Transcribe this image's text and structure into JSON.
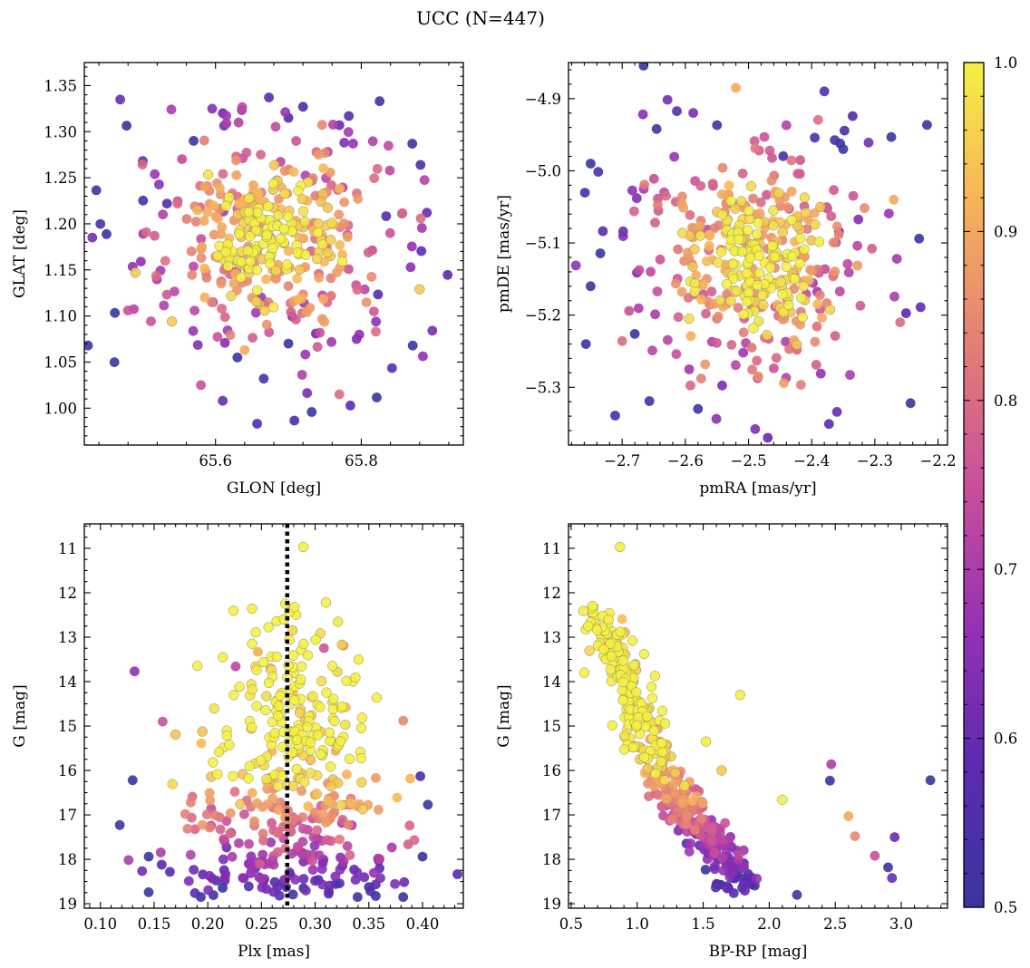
{
  "figure": {
    "title": "UCC (N=447)",
    "colorbar": {
      "label": "",
      "range": [
        0.5,
        1.0
      ],
      "ticks": [
        0.5,
        0.6,
        0.7,
        0.8,
        0.9,
        1.0
      ],
      "tick_labels": [
        "0.5",
        "0.6",
        "0.7",
        "0.8",
        "0.9",
        "1.0"
      ],
      "colormap": "plasma-truncated",
      "stops": [
        "#3a35a0",
        "#5b2ab0",
        "#9531b4",
        "#c94f9a",
        "#e37f76",
        "#f6b25a",
        "#f5f044"
      ]
    }
  },
  "chart_data": [
    {
      "type": "scatter",
      "name": "glon-glat",
      "xlabel": "GLON [deg]",
      "ylabel": "GLAT [deg]",
      "xlim": [
        65.42,
        65.94
      ],
      "ylim": [
        0.96,
        1.375
      ],
      "xticks": [
        65.6,
        65.8
      ],
      "xtick_labels": [
        "65.6",
        "65.8"
      ],
      "yticks": [
        1.0,
        1.05,
        1.1,
        1.15,
        1.2,
        1.25,
        1.3,
        1.35
      ],
      "ytick_labels": [
        "1.00",
        "1.05",
        "1.10",
        "1.15",
        "1.20",
        "1.25",
        "1.30",
        "1.35"
      ],
      "yinvert": false,
      "n_points": 447,
      "highlight_points": [
        [
          65.61,
          1.32,
          0.6
        ],
        [
          65.72,
          1.327,
          0.55
        ],
        [
          65.7,
          1.315,
          0.55
        ],
        [
          65.77,
          1.307,
          0.6
        ],
        [
          65.87,
          1.287,
          0.5
        ],
        [
          65.57,
          1.29,
          0.5
        ],
        [
          65.49,
          1.147,
          0.95
        ],
        [
          65.48,
          1.106,
          0.75
        ],
        [
          65.54,
          1.094,
          0.95
        ],
        [
          65.61,
          1.008,
          0.6
        ],
        [
          65.77,
          1.015,
          0.8
        ],
        [
          65.58,
          1.025,
          0.75
        ],
        [
          65.88,
          1.129,
          0.95
        ],
        [
          65.89,
          1.212,
          0.6
        ],
        [
          65.82,
          1.083,
          0.8
        ],
        [
          65.7,
          1.07,
          0.5
        ],
        [
          65.63,
          1.055,
          0.5
        ],
        [
          65.64,
          1.063,
          0.9
        ]
      ],
      "cluster": {
        "center": [
          65.68,
          1.185
        ],
        "spread": [
          0.065,
          0.05
        ]
      }
    },
    {
      "type": "scatter",
      "name": "pmra-pmde",
      "xlabel": "pmRA [mas/yr]",
      "ylabel": "pmDE [mas/yr]",
      "xlim": [
        -2.785,
        -2.185
      ],
      "ylim": [
        -5.38,
        -4.85
      ],
      "xticks": [
        -2.7,
        -2.6,
        -2.5,
        -2.4,
        -2.3,
        -2.2
      ],
      "xtick_labels": [
        "−2.7",
        "−2.6",
        "−2.5",
        "−2.4",
        "−2.3",
        "−2.2"
      ],
      "yticks": [
        -5.3,
        -5.2,
        -5.1,
        -5.0,
        -4.9
      ],
      "ytick_labels": [
        "−5.3",
        "−5.2",
        "−5.1",
        "−5.0",
        "−4.9"
      ],
      "yinvert": false,
      "n_points": 447,
      "highlight_points": [
        [
          -2.38,
          -4.89,
          0.55
        ],
        [
          -2.52,
          -4.885,
          0.9
        ],
        [
          -2.75,
          -4.99,
          0.5
        ],
        [
          -2.75,
          -5.16,
          0.5
        ],
        [
          -2.68,
          -5.226,
          0.5
        ],
        [
          -2.7,
          -5.236,
          0.8
        ],
        [
          -2.58,
          -5.33,
          0.5
        ],
        [
          -2.36,
          -5.334,
          0.6
        ],
        [
          -2.23,
          -5.094,
          0.5
        ],
        [
          -2.26,
          -5.21,
          0.8
        ],
        [
          -2.35,
          -4.97,
          0.5
        ],
        [
          -2.27,
          -5.04,
          0.9
        ]
      ],
      "cluster": {
        "center": [
          -2.49,
          -5.125
        ],
        "spread": [
          0.075,
          0.07
        ]
      }
    },
    {
      "type": "scatter",
      "name": "plx-g",
      "xlabel": "Plx [mas]",
      "ylabel": "G [mag]",
      "xlim": [
        0.085,
        0.438
      ],
      "ylim": [
        10.45,
        19.1
      ],
      "xticks": [
        0.1,
        0.15,
        0.2,
        0.25,
        0.3,
        0.35,
        0.4
      ],
      "xtick_labels": [
        "0.10",
        "0.15",
        "0.20",
        "0.25",
        "0.30",
        "0.35",
        "0.40"
      ],
      "yticks": [
        11,
        12,
        13,
        14,
        15,
        16,
        17,
        18,
        19
      ],
      "ytick_labels": [
        "11",
        "12",
        "13",
        "14",
        "15",
        "16",
        "17",
        "18",
        "19"
      ],
      "yinvert": true,
      "vline": {
        "x": 0.274,
        "style": "dotted"
      },
      "n_points": 447,
      "highlight_points": [
        [
          0.289,
          10.97,
          1.0
        ],
        [
          0.31,
          12.22,
          1.0
        ],
        [
          0.158,
          14.9,
          0.75
        ],
        [
          0.382,
          14.88,
          0.85
        ],
        [
          0.118,
          17.23,
          0.5
        ],
        [
          0.13,
          16.22,
          0.5
        ],
        [
          0.145,
          17.94,
          0.5
        ],
        [
          0.145,
          18.74,
          0.5
        ],
        [
          0.382,
          18.85,
          0.5
        ],
        [
          0.405,
          16.77,
          0.5
        ],
        [
          0.398,
          16.13,
          0.55
        ],
        [
          0.4,
          17.94,
          0.5
        ],
        [
          0.325,
          13.17,
          0.95
        ],
        [
          0.335,
          14.0,
          1.0
        ]
      ],
      "cluster": {
        "center": [
          0.277,
          16.0
        ],
        "spread": [
          0.04,
          1.5
        ]
      }
    },
    {
      "type": "scatter",
      "name": "bprp-g",
      "xlabel": "BP-RP [mag]",
      "ylabel": "G [mag]",
      "xlim": [
        0.48,
        3.35
      ],
      "ylim": [
        10.45,
        19.1
      ],
      "xticks": [
        0.5,
        1.0,
        1.5,
        2.0,
        2.5,
        3.0
      ],
      "xtick_labels": [
        "0.5",
        "1.0",
        "1.5",
        "2.0",
        "2.5",
        "3.0"
      ],
      "yticks": [
        11,
        12,
        13,
        14,
        15,
        16,
        17,
        18,
        19
      ],
      "ytick_labels": [
        "11",
        "12",
        "13",
        "14",
        "15",
        "16",
        "17",
        "18",
        "19"
      ],
      "yinvert": true,
      "n_points": 447,
      "highlight_points": [
        [
          0.87,
          10.97,
          1.0
        ],
        [
          3.22,
          16.22,
          0.5
        ],
        [
          2.47,
          15.86,
          0.7
        ],
        [
          2.46,
          16.23,
          0.5
        ],
        [
          2.95,
          17.5,
          0.6
        ],
        [
          2.93,
          18.42,
          0.6
        ],
        [
          2.8,
          17.92,
          0.75
        ],
        [
          2.9,
          18.18,
          0.5
        ],
        [
          2.21,
          18.8,
          0.5
        ],
        [
          1.78,
          14.3,
          1.0
        ],
        [
          2.1,
          16.66,
          1.0
        ],
        [
          2.6,
          17.03,
          0.9
        ],
        [
          2.65,
          17.48,
          0.85
        ],
        [
          0.6,
          13.8,
          1.0
        ],
        [
          1.52,
          15.35,
          1.0
        ],
        [
          1.64,
          16.0,
          0.95
        ]
      ],
      "sequence": [
        [
          0.62,
          12.3
        ],
        [
          0.8,
          13.0
        ],
        [
          0.95,
          14.2
        ],
        [
          1.05,
          15.2
        ],
        [
          1.2,
          16.2
        ],
        [
          1.4,
          17.0
        ],
        [
          1.6,
          17.8
        ],
        [
          1.8,
          18.6
        ]
      ]
    }
  ]
}
